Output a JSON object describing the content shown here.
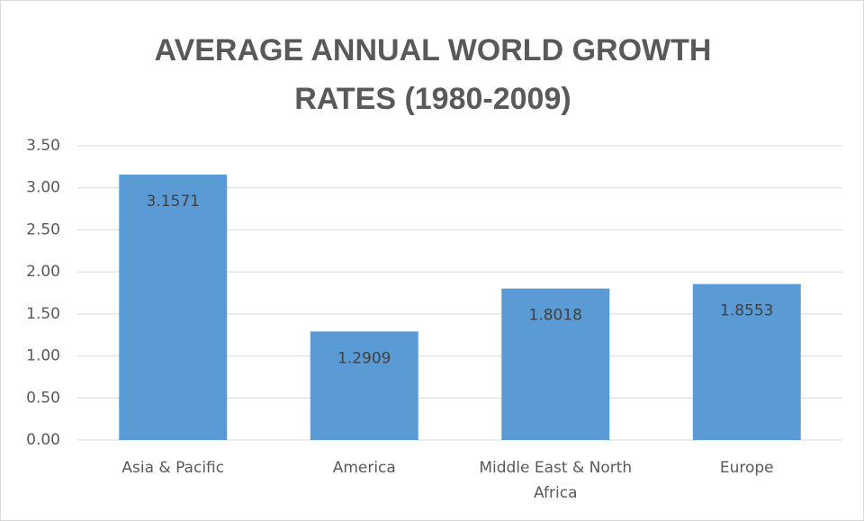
{
  "chart_data": {
    "type": "bar",
    "title": "AVERAGE ANNUAL WORLD GROWTH RATES (1980-2009)",
    "categories": [
      "Asia & Pacific",
      "America",
      "Middle East & North Africa",
      "Europe"
    ],
    "values": [
      3.1571,
      1.2909,
      1.8018,
      1.8553
    ],
    "color": "#5b9bd5",
    "ylim": [
      0,
      3.5
    ],
    "yticks": [
      {
        "value": 0,
        "label": "0.00"
      },
      {
        "value": 0.5,
        "label": "0.50"
      },
      {
        "value": 1,
        "label": "1.00"
      },
      {
        "value": 1.5,
        "label": "1.50"
      },
      {
        "value": 2,
        "label": "2.00"
      },
      {
        "value": 2.5,
        "label": "2.50"
      },
      {
        "value": 3,
        "label": "3.00"
      },
      {
        "value": 3.5,
        "label": "3.50"
      }
    ],
    "grid": true
  }
}
